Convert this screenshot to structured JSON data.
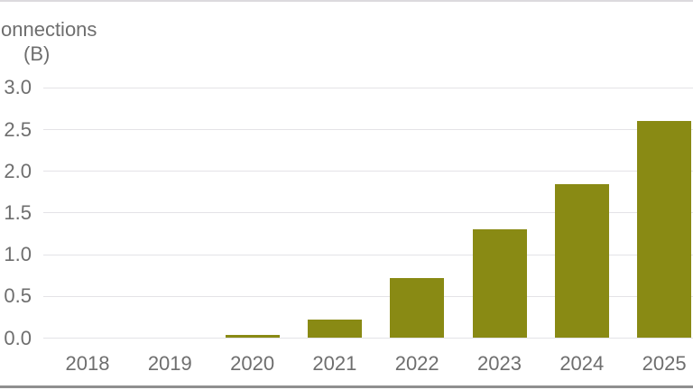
{
  "colors": {
    "background": "#ffffff",
    "bar": "#898a14",
    "grid_line": "#e4e3e7",
    "axis_text": "#6e6e6e",
    "top_border": "#dcdade",
    "bottom_border": "#8f8f8f"
  },
  "y_axis_title": {
    "line1": "onnections",
    "line2": "(B)"
  },
  "chart_data": {
    "type": "bar",
    "title": "Connections (B)",
    "xlabel": "",
    "ylabel": "Connections (B)",
    "categories": [
      "2018",
      "2019",
      "2020",
      "2021",
      "2022",
      "2023",
      "2024",
      "2025"
    ],
    "values": [
      0,
      0,
      0.04,
      0.22,
      0.72,
      1.3,
      1.85,
      2.6
    ],
    "ylim": [
      0,
      3.0
    ],
    "y_tick_labels": [
      "0.0",
      "0.5",
      "1.0",
      "1.5",
      "2.0",
      "2.5",
      "3.0"
    ],
    "grid": "horizontal",
    "legend": "none",
    "bar_color": "#898a14"
  }
}
